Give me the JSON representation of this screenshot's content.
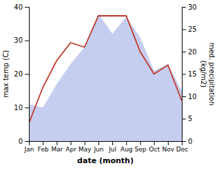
{
  "chart_data": {
    "type": "area",
    "categories": [
      "Jan",
      "Feb",
      "Mar",
      "Apr",
      "May",
      "Jun",
      "Jul",
      "Aug",
      "Sep",
      "Oct",
      "Nov",
      "Dec"
    ],
    "series": [
      {
        "type": "area",
        "color": "#c5cef0",
        "values": [
          11,
          10,
          17,
          23,
          28,
          38,
          32,
          37,
          31,
          21,
          23,
          15
        ]
      },
      {
        "type": "line",
        "color": "#c0392b",
        "axis": "y2",
        "values": [
          4,
          12,
          18,
          22,
          21,
          28,
          28,
          28,
          20,
          15,
          17,
          9
        ]
      }
    ],
    "xlabel": "date (month)",
    "ylabel": "max temp (C)",
    "y2label": "med. precipitation\n(kg/m2)",
    "ylim": [
      0,
      40
    ],
    "yticks": [
      0,
      10,
      20,
      30,
      40
    ],
    "y2lim": [
      0,
      30
    ],
    "y2ticks": [
      0,
      5,
      10,
      15,
      20,
      25,
      30
    ]
  }
}
